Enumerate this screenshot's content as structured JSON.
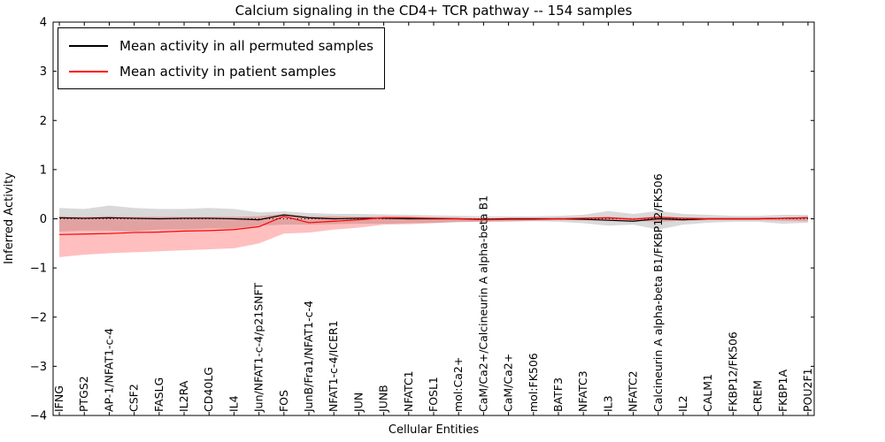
{
  "title": "Calcium signaling in the CD4+ TCR pathway -- 154 samples",
  "chart_data": {
    "type": "line",
    "title": "Calcium signaling in the CD4+ TCR pathway -- 154 samples",
    "xlabel": "Cellular Entities",
    "ylabel": "Inferred Activity",
    "ylim": [
      -4,
      4
    ],
    "yticks": [
      -4,
      -3,
      -2,
      -1,
      0,
      1,
      2,
      3,
      4
    ],
    "ytick_labels": [
      "−4",
      "−3",
      "−2",
      "−1",
      "0",
      "1",
      "2",
      "3",
      "4"
    ],
    "grid": false,
    "legend_position": "upper left",
    "zero_line": {
      "value": 0,
      "style": "dotted",
      "color": "#000000"
    },
    "categories": [
      "IFNG",
      "PTGS2",
      "AP-1/NFAT1-c-4",
      "CSF2",
      "FASLG",
      "IL2RA",
      "CD40LG",
      "IL4",
      "Jun/NFAT1-c-4/p21SNFT",
      "FOS",
      "JunB/Fra1/NFAT1-c-4",
      "NFAT1-c-4/ICER1",
      "JUN",
      "JUNB",
      "NFATC1",
      "FOSL1",
      "mol:Ca2+",
      "CaM/Ca2+/Calcineurin A alpha-beta B1",
      "CaM/Ca2+",
      "mol:FK506",
      "BATF3",
      "NFATC3",
      "IL3",
      "NFATC2",
      "Calcineurin A alpha-beta B1/FKBP12/FK506",
      "IL2",
      "CALM1",
      "FKBP12/FK506",
      "CREM",
      "FKBP1A",
      "POU2F1"
    ],
    "series": [
      {
        "key": "permuted",
        "name": "Mean activity in all permuted samples",
        "color": "#000000",
        "band_opacity": 0.15,
        "values": [
          0.02,
          0.01,
          0.02,
          0.01,
          0.0,
          0.01,
          0.01,
          0.0,
          -0.02,
          0.08,
          0.02,
          0.0,
          0.01,
          0.01,
          0.0,
          0.0,
          0.0,
          -0.01,
          0.0,
          0.0,
          0.0,
          -0.01,
          -0.03,
          -0.05,
          0.0,
          -0.02,
          0.0,
          0.0,
          0.0,
          0.01,
          0.02
        ],
        "band_upper": [
          0.22,
          0.2,
          0.27,
          0.22,
          0.2,
          0.2,
          0.22,
          0.2,
          0.13,
          0.15,
          0.12,
          0.1,
          0.1,
          0.09,
          0.08,
          0.07,
          0.06,
          0.05,
          0.05,
          0.05,
          0.06,
          0.08,
          0.16,
          0.1,
          0.16,
          0.1,
          0.08,
          0.06,
          0.06,
          0.08,
          0.08
        ],
        "band_lower": [
          -0.26,
          -0.24,
          -0.24,
          -0.26,
          -0.22,
          -0.22,
          -0.2,
          -0.2,
          -0.14,
          -0.12,
          -0.12,
          -0.11,
          -0.1,
          -0.1,
          -0.09,
          -0.08,
          -0.07,
          -0.06,
          -0.06,
          -0.05,
          -0.06,
          -0.09,
          -0.14,
          -0.12,
          -0.22,
          -0.12,
          -0.08,
          -0.06,
          -0.06,
          -0.1,
          -0.08
        ]
      },
      {
        "key": "patient",
        "name": "Mean activity in patient samples",
        "color": "#ff0000",
        "band_opacity": 0.25,
        "values": [
          -0.32,
          -0.31,
          -0.3,
          -0.28,
          -0.27,
          -0.25,
          -0.24,
          -0.22,
          -0.16,
          0.05,
          -0.08,
          -0.05,
          -0.02,
          0.02,
          0.02,
          0.01,
          0.0,
          -0.02,
          -0.01,
          -0.01,
          0.0,
          0.01,
          0.02,
          -0.01,
          0.03,
          0.01,
          0.0,
          0.0,
          0.0,
          0.01,
          0.02
        ],
        "band_upper": [
          0.05,
          0.04,
          0.05,
          0.04,
          0.04,
          0.04,
          0.04,
          0.04,
          0.05,
          0.1,
          0.05,
          0.05,
          0.04,
          0.05,
          0.04,
          0.03,
          0.02,
          0.01,
          0.02,
          0.02,
          0.02,
          0.03,
          0.04,
          0.02,
          0.05,
          0.03,
          0.02,
          0.02,
          0.02,
          0.03,
          0.04
        ],
        "band_lower": [
          -0.78,
          -0.73,
          -0.7,
          -0.68,
          -0.66,
          -0.64,
          -0.62,
          -0.6,
          -0.5,
          -0.3,
          -0.28,
          -0.22,
          -0.18,
          -0.12,
          -0.11,
          -0.09,
          -0.06,
          -0.06,
          -0.05,
          -0.04,
          -0.03,
          -0.03,
          -0.04,
          -0.04,
          -0.06,
          -0.04,
          -0.03,
          -0.03,
          -0.03,
          -0.04,
          -0.05
        ]
      }
    ]
  }
}
